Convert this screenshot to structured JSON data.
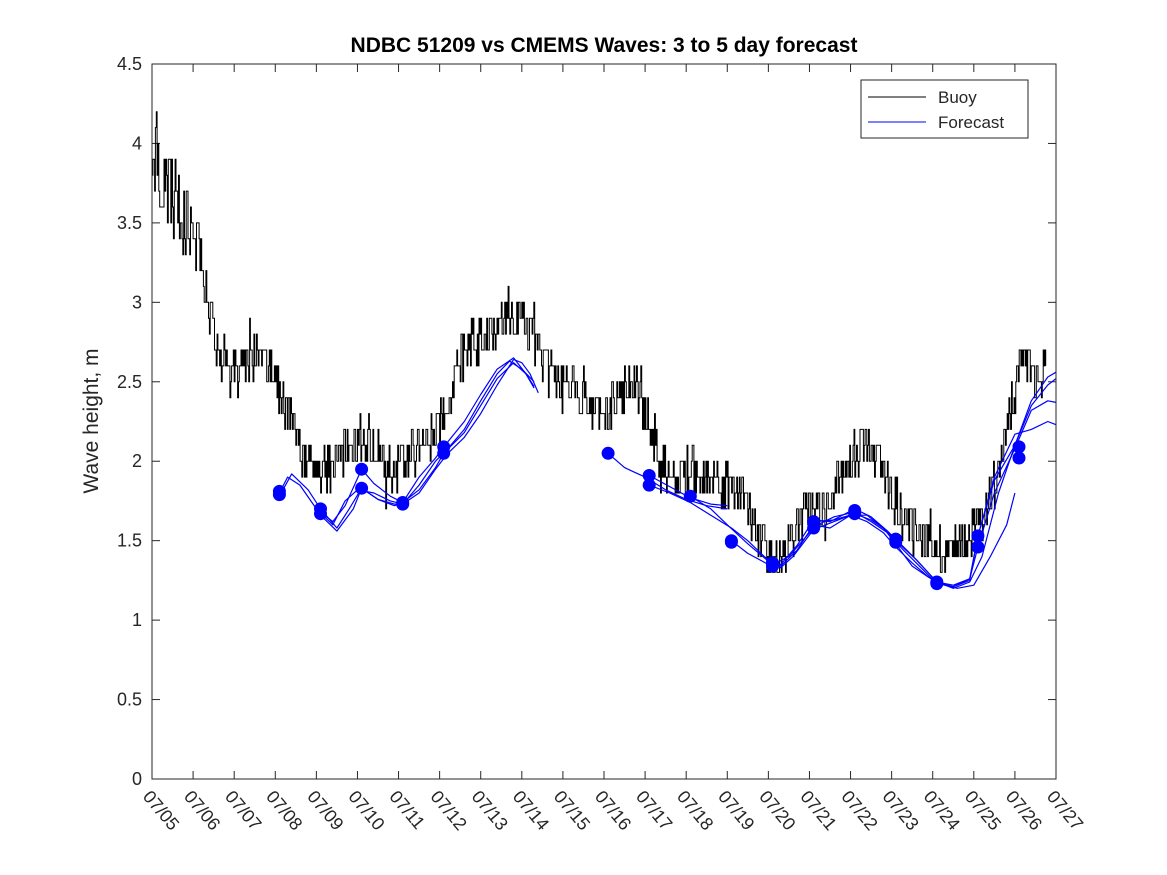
{
  "chart_data": {
    "type": "line",
    "title": "NDBC 51209 vs CMEMS Waves: 3 to 5 day forecast",
    "xlabel": "",
    "ylabel": "Wave height, m",
    "xlim": [
      "07/05",
      "07/27"
    ],
    "ylim": [
      0,
      4.5
    ],
    "yticks": [
      "0",
      "0.5",
      "1",
      "1.5",
      "2",
      "2.5",
      "3",
      "3.5",
      "4",
      "4.5"
    ],
    "xticks": [
      "07/05",
      "07/06",
      "07/07",
      "07/08",
      "07/09",
      "07/10",
      "07/11",
      "07/12",
      "07/13",
      "07/14",
      "07/15",
      "07/16",
      "07/17",
      "07/18",
      "07/19",
      "07/20",
      "07/21",
      "07/22",
      "07/23",
      "07/24",
      "07/25",
      "07/26",
      "07/27"
    ],
    "grid": false,
    "legend": {
      "position": "top-right",
      "entries": [
        "Buoy",
        "Forecast"
      ]
    },
    "colors": {
      "buoy": "#000000",
      "forecast": "#0000ff",
      "markers": "#0000ff"
    },
    "buoy_anchors": [
      [
        0.0,
        3.8
      ],
      [
        0.1,
        4.0
      ],
      [
        0.2,
        3.8
      ],
      [
        0.35,
        3.7
      ],
      [
        0.5,
        3.7
      ],
      [
        0.65,
        3.6
      ],
      [
        0.8,
        3.5
      ],
      [
        0.9,
        3.4
      ],
      [
        1.0,
        3.4
      ],
      [
        1.2,
        3.2
      ],
      [
        1.4,
        2.9
      ],
      [
        1.6,
        2.7
      ],
      [
        1.8,
        2.6
      ],
      [
        2.0,
        2.55
      ],
      [
        2.3,
        2.6
      ],
      [
        2.6,
        2.65
      ],
      [
        2.85,
        2.6
      ],
      [
        3.0,
        2.5
      ],
      [
        3.2,
        2.4
      ],
      [
        3.4,
        2.25
      ],
      [
        3.6,
        2.05
      ],
      [
        3.9,
        2.0
      ],
      [
        4.2,
        1.95
      ],
      [
        4.5,
        2.0
      ],
      [
        4.8,
        2.05
      ],
      [
        5.1,
        2.15
      ],
      [
        5.4,
        2.1
      ],
      [
        5.7,
        2.0
      ],
      [
        6.0,
        1.95
      ],
      [
        6.3,
        2.05
      ],
      [
        6.6,
        2.1
      ],
      [
        6.9,
        2.2
      ],
      [
        7.2,
        2.4
      ],
      [
        7.5,
        2.65
      ],
      [
        7.8,
        2.75
      ],
      [
        8.1,
        2.8
      ],
      [
        8.4,
        2.85
      ],
      [
        8.7,
        2.95
      ],
      [
        9.0,
        2.85
      ],
      [
        9.3,
        2.75
      ],
      [
        9.6,
        2.6
      ],
      [
        9.9,
        2.5
      ],
      [
        10.2,
        2.45
      ],
      [
        10.5,
        2.4
      ],
      [
        10.8,
        2.35
      ],
      [
        11.1,
        2.3
      ],
      [
        11.4,
        2.4
      ],
      [
        11.7,
        2.5
      ],
      [
        12.0,
        2.3
      ],
      [
        12.3,
        2.05
      ],
      [
        12.6,
        1.95
      ],
      [
        12.9,
        1.9
      ],
      [
        13.2,
        1.95
      ],
      [
        13.5,
        1.9
      ],
      [
        13.8,
        1.85
      ],
      [
        14.1,
        1.85
      ],
      [
        14.4,
        1.75
      ],
      [
        14.7,
        1.55
      ],
      [
        15.0,
        1.4
      ],
      [
        15.3,
        1.4
      ],
      [
        15.6,
        1.55
      ],
      [
        15.9,
        1.7
      ],
      [
        16.2,
        1.7
      ],
      [
        16.5,
        1.75
      ],
      [
        16.8,
        1.9
      ],
      [
        17.1,
        2.05
      ],
      [
        17.4,
        2.15
      ],
      [
        17.7,
        2.0
      ],
      [
        18.0,
        1.8
      ],
      [
        18.3,
        1.65
      ],
      [
        18.6,
        1.55
      ],
      [
        18.9,
        1.5
      ],
      [
        19.2,
        1.45
      ],
      [
        19.5,
        1.45
      ],
      [
        19.8,
        1.5
      ],
      [
        20.1,
        1.65
      ],
      [
        20.4,
        1.75
      ],
      [
        20.6,
        1.95
      ],
      [
        20.8,
        2.2
      ],
      [
        21.0,
        2.45
      ],
      [
        21.2,
        2.65
      ],
      [
        21.4,
        2.6
      ],
      [
        21.6,
        2.45
      ],
      [
        21.75,
        2.7
      ]
    ],
    "forecast_series": [
      {
        "points": [
          [
            3.1,
            1.8
          ],
          [
            3.3,
            1.9
          ],
          [
            3.6,
            1.85
          ],
          [
            4.0,
            1.7
          ],
          [
            4.4,
            1.6
          ],
          [
            4.7,
            1.75
          ],
          [
            5.0,
            1.82
          ],
          [
            5.4,
            1.8
          ],
          [
            5.8,
            1.75
          ],
          [
            6.1,
            1.73
          ],
          [
            6.5,
            1.8
          ],
          [
            6.9,
            1.95
          ],
          [
            7.2,
            2.05
          ],
          [
            7.6,
            2.15
          ],
          [
            8.0,
            2.3
          ],
          [
            8.4,
            2.48
          ],
          [
            8.8,
            2.64
          ],
          [
            9.0,
            2.62
          ],
          [
            9.2,
            2.55
          ],
          [
            9.4,
            2.43
          ]
        ]
      },
      {
        "points": [
          [
            3.1,
            1.78
          ],
          [
            3.4,
            1.92
          ],
          [
            3.8,
            1.82
          ],
          [
            4.1,
            1.7
          ],
          [
            4.5,
            1.58
          ],
          [
            4.8,
            1.7
          ],
          [
            5.1,
            1.83
          ],
          [
            5.5,
            1.76
          ],
          [
            5.9,
            1.73
          ],
          [
            6.1,
            1.73
          ],
          [
            6.5,
            1.85
          ],
          [
            6.9,
            2.0
          ],
          [
            7.2,
            2.08
          ],
          [
            7.6,
            2.2
          ],
          [
            8.0,
            2.38
          ],
          [
            8.4,
            2.55
          ],
          [
            8.7,
            2.63
          ],
          [
            9.0,
            2.58
          ],
          [
            9.3,
            2.5
          ]
        ]
      },
      {
        "points": [
          [
            4.1,
            1.68
          ],
          [
            4.4,
            1.62
          ],
          [
            4.7,
            1.72
          ],
          [
            5.1,
            1.95
          ],
          [
            5.4,
            1.86
          ],
          [
            5.8,
            1.78
          ],
          [
            6.1,
            1.74
          ],
          [
            6.5,
            1.9
          ],
          [
            6.9,
            2.02
          ],
          [
            7.1,
            2.09
          ],
          [
            7.6,
            2.25
          ],
          [
            8.0,
            2.42
          ],
          [
            8.4,
            2.58
          ],
          [
            8.8,
            2.65
          ],
          [
            9.1,
            2.55
          ],
          [
            9.3,
            2.47
          ]
        ]
      },
      {
        "points": [
          [
            4.1,
            1.66
          ],
          [
            4.5,
            1.56
          ],
          [
            4.9,
            1.7
          ],
          [
            5.1,
            1.83
          ],
          [
            5.5,
            1.76
          ],
          [
            5.9,
            1.72
          ],
          [
            6.1,
            1.74
          ],
          [
            6.5,
            1.82
          ],
          [
            6.9,
            1.96
          ],
          [
            7.1,
            2.05
          ],
          [
            7.6,
            2.18
          ],
          [
            8.0,
            2.35
          ],
          [
            8.4,
            2.52
          ],
          [
            8.8,
            2.62
          ],
          [
            9.1,
            2.55
          ],
          [
            9.3,
            2.46
          ]
        ]
      },
      {
        "points": [
          [
            11.1,
            2.05
          ],
          [
            11.5,
            1.96
          ],
          [
            12.0,
            1.9
          ],
          [
            12.5,
            1.82
          ],
          [
            13.0,
            1.76
          ],
          [
            13.5,
            1.72
          ],
          [
            14.0,
            1.7
          ]
        ]
      },
      {
        "points": [
          [
            12.1,
            1.91
          ],
          [
            12.6,
            1.84
          ],
          [
            13.1,
            1.77
          ],
          [
            13.6,
            1.73
          ],
          [
            14.0,
            1.72
          ]
        ]
      },
      {
        "points": [
          [
            12.1,
            1.85
          ],
          [
            12.6,
            1.8
          ],
          [
            13.1,
            1.74
          ],
          [
            13.6,
            1.66
          ],
          [
            14.1,
            1.58
          ],
          [
            14.5,
            1.5
          ],
          [
            14.9,
            1.4
          ],
          [
            15.3,
            1.33
          ],
          [
            15.6,
            1.4
          ],
          [
            16.1,
            1.57
          ],
          [
            16.6,
            1.62
          ],
          [
            17.0,
            1.66
          ],
          [
            17.4,
            1.62
          ],
          [
            17.8,
            1.55
          ],
          [
            18.1,
            1.46
          ],
          [
            18.5,
            1.36
          ],
          [
            18.9,
            1.27
          ],
          [
            19.3,
            1.22
          ],
          [
            19.6,
            1.2
          ],
          [
            20.0,
            1.22
          ],
          [
            20.4,
            1.4
          ],
          [
            20.8,
            1.6
          ],
          [
            21.0,
            1.8
          ]
        ]
      },
      {
        "points": [
          [
            13.1,
            1.78
          ],
          [
            13.6,
            1.7
          ],
          [
            14.0,
            1.6
          ],
          [
            14.5,
            1.48
          ],
          [
            15.0,
            1.37
          ],
          [
            15.3,
            1.34
          ],
          [
            15.7,
            1.44
          ],
          [
            16.1,
            1.6
          ],
          [
            16.5,
            1.58
          ],
          [
            17.0,
            1.66
          ],
          [
            17.4,
            1.66
          ],
          [
            17.8,
            1.58
          ],
          [
            18.1,
            1.48
          ],
          [
            18.5,
            1.34
          ],
          [
            18.9,
            1.27
          ],
          [
            19.1,
            1.24
          ],
          [
            19.5,
            1.2
          ],
          [
            19.9,
            1.24
          ],
          [
            20.2,
            1.4
          ],
          [
            20.6,
            1.8
          ],
          [
            21.0,
            2.1
          ],
          [
            21.4,
            2.35
          ],
          [
            21.8,
            2.48
          ],
          [
            22.0,
            2.52
          ]
        ]
      },
      {
        "points": [
          [
            14.1,
            1.5
          ],
          [
            14.5,
            1.42
          ],
          [
            15.0,
            1.35
          ],
          [
            15.3,
            1.35
          ],
          [
            15.7,
            1.47
          ],
          [
            16.1,
            1.63
          ],
          [
            16.5,
            1.62
          ],
          [
            17.1,
            1.7
          ],
          [
            17.5,
            1.65
          ],
          [
            17.9,
            1.56
          ],
          [
            18.1,
            1.5
          ],
          [
            18.6,
            1.38
          ],
          [
            19.1,
            1.24
          ],
          [
            19.5,
            1.21
          ],
          [
            19.9,
            1.25
          ],
          [
            20.1,
            1.53
          ],
          [
            20.5,
            1.9
          ],
          [
            21.0,
            2.17
          ],
          [
            21.4,
            2.2
          ],
          [
            21.8,
            2.25
          ],
          [
            22.0,
            2.23
          ]
        ]
      },
      {
        "points": [
          [
            15.1,
            1.35
          ],
          [
            15.5,
            1.4
          ],
          [
            16.0,
            1.55
          ],
          [
            16.2,
            1.6
          ],
          [
            16.6,
            1.65
          ],
          [
            17.1,
            1.68
          ],
          [
            17.5,
            1.62
          ],
          [
            17.9,
            1.55
          ],
          [
            18.1,
            1.49
          ],
          [
            18.6,
            1.36
          ],
          [
            19.1,
            1.23
          ],
          [
            19.5,
            1.21
          ],
          [
            19.9,
            1.26
          ],
          [
            20.1,
            1.46
          ],
          [
            20.5,
            1.8
          ],
          [
            21.0,
            2.08
          ],
          [
            21.4,
            2.32
          ],
          [
            21.8,
            2.38
          ],
          [
            22.0,
            2.37
          ]
        ]
      },
      {
        "points": [
          [
            16.1,
            1.62
          ],
          [
            16.6,
            1.63
          ],
          [
            17.1,
            1.67
          ],
          [
            17.5,
            1.63
          ],
          [
            17.9,
            1.56
          ],
          [
            18.1,
            1.51
          ],
          [
            18.6,
            1.38
          ],
          [
            19.1,
            1.24
          ],
          [
            19.5,
            1.22
          ],
          [
            19.9,
            1.26
          ],
          [
            20.1,
            1.53
          ],
          [
            20.5,
            1.88
          ],
          [
            21.0,
            2.1
          ],
          [
            21.4,
            2.38
          ],
          [
            21.8,
            2.53
          ],
          [
            22.0,
            2.56
          ]
        ]
      }
    ],
    "markers": [
      [
        3.1,
        1.81
      ],
      [
        3.1,
        1.79
      ],
      [
        4.1,
        1.7
      ],
      [
        4.1,
        1.67
      ],
      [
        5.1,
        1.95
      ],
      [
        5.1,
        1.83
      ],
      [
        6.1,
        1.74
      ],
      [
        6.1,
        1.73
      ],
      [
        7.1,
        2.09
      ],
      [
        7.1,
        2.05
      ],
      [
        11.1,
        2.05
      ],
      [
        12.1,
        1.91
      ],
      [
        12.1,
        1.85
      ],
      [
        13.1,
        1.78
      ],
      [
        14.1,
        1.5
      ],
      [
        14.1,
        1.49
      ],
      [
        15.1,
        1.36
      ],
      [
        15.1,
        1.34
      ],
      [
        16.1,
        1.62
      ],
      [
        16.1,
        1.58
      ],
      [
        17.1,
        1.69
      ],
      [
        17.1,
        1.67
      ],
      [
        18.1,
        1.51
      ],
      [
        18.1,
        1.49
      ],
      [
        19.1,
        1.24
      ],
      [
        19.1,
        1.23
      ],
      [
        20.1,
        1.53
      ],
      [
        20.1,
        1.46
      ],
      [
        21.1,
        2.09
      ],
      [
        21.1,
        2.02
      ]
    ]
  }
}
